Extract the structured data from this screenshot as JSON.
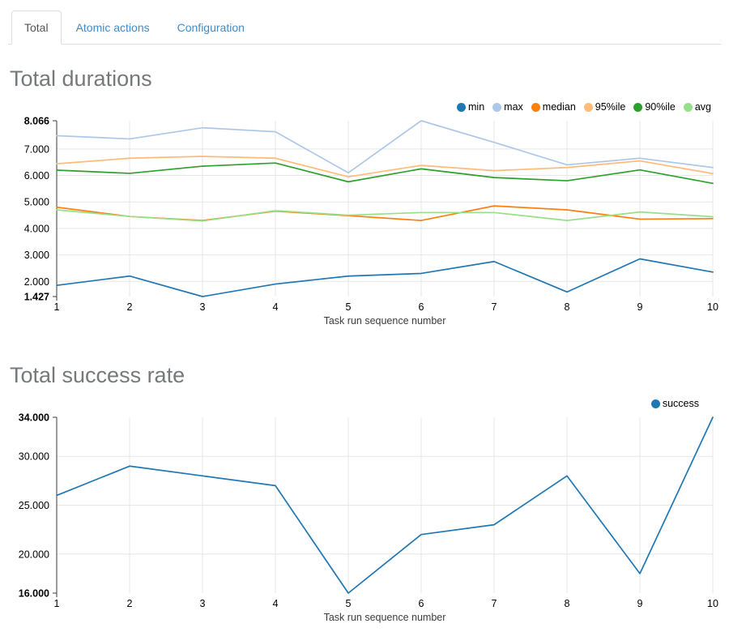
{
  "tabs": [
    {
      "label": "Total",
      "active": true
    },
    {
      "label": "Atomic actions",
      "active": false
    },
    {
      "label": "Configuration",
      "active": false
    }
  ],
  "chart_data": [
    {
      "type": "line",
      "title": "Total durations",
      "xlabel": "Task run sequence number",
      "ylabel": "",
      "x": [
        1,
        2,
        3,
        4,
        5,
        6,
        7,
        8,
        9,
        10
      ],
      "ylim": [
        1.427,
        8.066
      ],
      "yticks": [
        2,
        3,
        4,
        5,
        6,
        7
      ],
      "grid": true,
      "legend_position": "top-right",
      "series": [
        {
          "name": "min",
          "color": "#1f77b4",
          "values": [
            1.85,
            2.2,
            1.427,
            1.9,
            2.2,
            2.3,
            2.75,
            1.6,
            2.85,
            2.35
          ]
        },
        {
          "name": "max",
          "color": "#aec7e8",
          "values": [
            7.5,
            7.38,
            7.8,
            7.65,
            6.1,
            8.066,
            7.25,
            6.4,
            6.65,
            6.3
          ]
        },
        {
          "name": "median",
          "color": "#ff7f0e",
          "values": [
            4.8,
            4.45,
            4.3,
            4.65,
            4.48,
            4.3,
            4.85,
            4.7,
            4.35,
            4.37
          ]
        },
        {
          "name": "95%ile",
          "color": "#ffbb78",
          "values": [
            6.44,
            6.65,
            6.72,
            6.65,
            5.95,
            6.38,
            6.18,
            6.3,
            6.55,
            6.07
          ]
        },
        {
          "name": "90%ile",
          "color": "#2ca02c",
          "values": [
            6.2,
            6.08,
            6.35,
            6.47,
            5.76,
            6.25,
            5.92,
            5.8,
            6.21,
            5.7
          ]
        },
        {
          "name": "avg",
          "color": "#98df8a",
          "values": [
            4.7,
            4.45,
            4.28,
            4.67,
            4.5,
            4.6,
            4.6,
            4.3,
            4.62,
            4.44
          ]
        }
      ]
    },
    {
      "type": "line",
      "title": "Total success rate",
      "xlabel": "Task run sequence number",
      "ylabel": "",
      "x": [
        1,
        2,
        3,
        4,
        5,
        6,
        7,
        8,
        9,
        10
      ],
      "ylim": [
        16.0,
        34.0
      ],
      "yticks": [
        20,
        25,
        30
      ],
      "grid": true,
      "legend_position": "top-right",
      "series": [
        {
          "name": "success",
          "color": "#1f77b4",
          "values": [
            26,
            29,
            28,
            27,
            16,
            22,
            23,
            28,
            18,
            34
          ]
        }
      ]
    }
  ],
  "style": {
    "grid_color": "#e7e7e7",
    "axis_color": "#3a3a3a",
    "tick_label_color": "#000000",
    "axis_title_color": "#3c3c3c",
    "heading_color": "#76797c",
    "tab_link_color": "#428bca",
    "tab_active_color": "#555555"
  }
}
